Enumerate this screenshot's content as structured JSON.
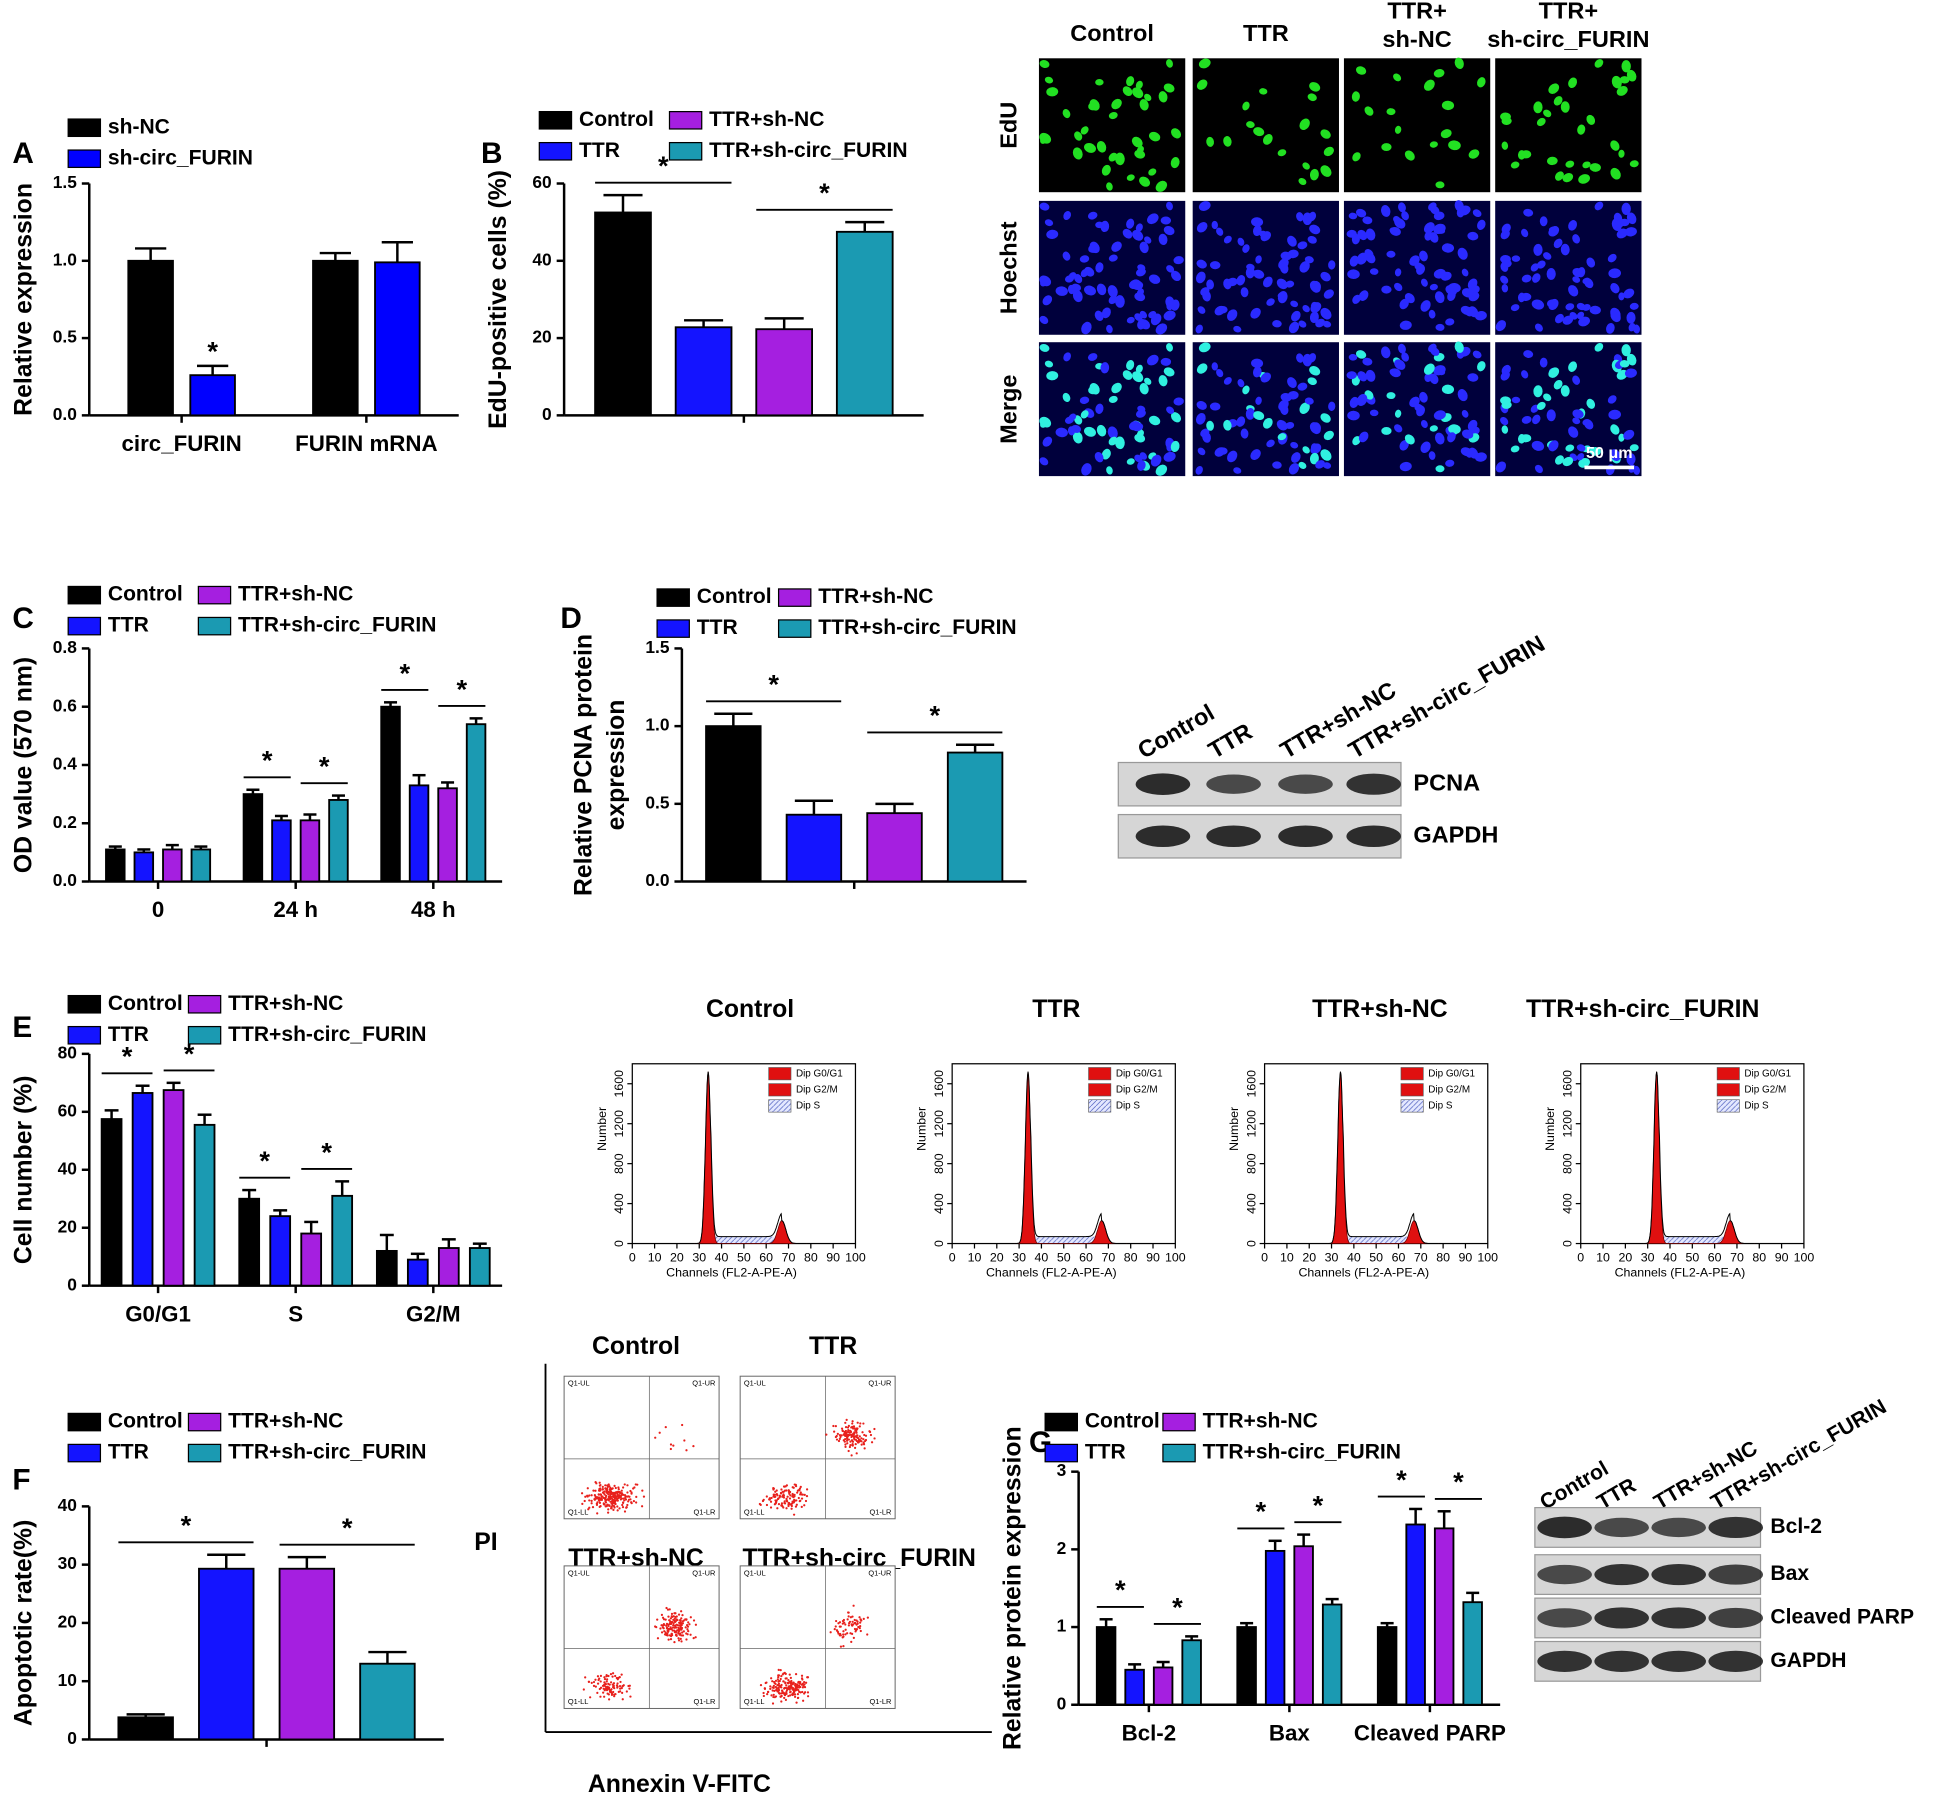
{
  "chart_data": [
    {
      "type": "bar",
      "panel_label": "A",
      "ylabel": "Relative expression",
      "categories": [
        "circ_FURIN",
        "FURIN mRNA"
      ],
      "series": [
        {
          "name": "sh-NC",
          "color": "#000000",
          "values": [
            1.0,
            1.0
          ],
          "errors": [
            0.08,
            0.05
          ]
        },
        {
          "name": "sh-circ_FURIN",
          "color": "#0000ff",
          "values": [
            0.26,
            0.99
          ],
          "errors": [
            0.06,
            0.13
          ]
        }
      ],
      "ylim": [
        0,
        1.5
      ],
      "yticks": [
        {
          "value": 0,
          "label": "0.0"
        },
        {
          "value": 0.5,
          "label": "0.5"
        },
        {
          "value": 1,
          "label": "1.0"
        },
        {
          "value": 1.5,
          "label": "1.5"
        }
      ],
      "annotations": [
        "*"
      ]
    },
    {
      "type": "bar",
      "panel_label": "B",
      "ylabel": "EdU-positive cells (%)",
      "categories": [
        null
      ],
      "series": [
        {
          "name": "Control",
          "color": "#000000",
          "values": [
            52.5
          ],
          "errors": [
            4.5
          ]
        },
        {
          "name": "TTR",
          "color": "#1414ff",
          "values": [
            22.8
          ],
          "errors": [
            1.8
          ]
        },
        {
          "name": "TTR+sh-NC",
          "color": "#a51fe0",
          "values": [
            22.3
          ],
          "errors": [
            2.8
          ]
        },
        {
          "name": "TTR+sh-circ_FURIN",
          "color": "#1b9ab2",
          "values": [
            47.5
          ],
          "errors": [
            2.5
          ]
        }
      ],
      "ylim": [
        0,
        60
      ],
      "yticks": [
        0,
        20,
        40,
        60
      ],
      "annotations": [
        "*",
        "*"
      ]
    },
    {
      "type": "bar",
      "panel_label": "C",
      "ylabel": "OD value (570 nm)",
      "categories": [
        "0",
        "24 h",
        "48 h"
      ],
      "series": [
        {
          "name": "Control",
          "color": "#000000",
          "values": [
            0.11,
            0.3,
            0.6
          ],
          "errors": [
            0.01,
            0.015,
            0.015
          ]
        },
        {
          "name": "TTR",
          "color": "#1414ff",
          "values": [
            0.1,
            0.21,
            0.33
          ],
          "errors": [
            0.01,
            0.015,
            0.035
          ]
        },
        {
          "name": "TTR+sh-NC",
          "color": "#a51fe0",
          "values": [
            0.11,
            0.21,
            0.32
          ],
          "errors": [
            0.015,
            0.02,
            0.02
          ]
        },
        {
          "name": "TTR+sh-circ_FURIN",
          "color": "#1b9ab2",
          "values": [
            0.11,
            0.28,
            0.54
          ],
          "errors": [
            0.01,
            0.015,
            0.02
          ]
        }
      ],
      "ylim": [
        0,
        0.8
      ],
      "yticks": [
        {
          "value": 0,
          "label": "0.0"
        },
        0.2,
        0.4,
        0.6,
        0.8
      ],
      "annotations": [
        "*",
        "*",
        "*",
        "*"
      ]
    },
    {
      "type": "bar",
      "panel_label": "D",
      "ylabel": [
        "Relative PCNA protein",
        "expression"
      ],
      "categories": [
        null
      ],
      "series": [
        {
          "name": "Control",
          "color": "#000000",
          "values": [
            1.0
          ],
          "errors": [
            0.08
          ]
        },
        {
          "name": "TTR",
          "color": "#1414ff",
          "values": [
            0.43
          ],
          "errors": [
            0.09
          ]
        },
        {
          "name": "TTR+sh-NC",
          "color": "#a51fe0",
          "values": [
            0.44
          ],
          "errors": [
            0.06
          ]
        },
        {
          "name": "TTR+sh-circ_FURIN",
          "color": "#1b9ab2",
          "values": [
            0.83
          ],
          "errors": [
            0.05
          ]
        }
      ],
      "ylim": [
        0,
        1.5
      ],
      "yticks": [
        {
          "value": 0,
          "label": "0.0"
        },
        0.5,
        {
          "value": 1,
          "label": "1.0"
        },
        1.5
      ],
      "annotations": [
        "*",
        "*"
      ]
    },
    {
      "type": "bar",
      "panel_label": "E",
      "ylabel": "Cell number (%)",
      "categories": [
        "G0/G1",
        "S",
        "G2/M"
      ],
      "series": [
        {
          "name": "Control",
          "color": "#000000",
          "values": [
            57.5,
            30,
            12
          ],
          "errors": [
            3,
            3,
            5.5
          ]
        },
        {
          "name": "TTR",
          "color": "#1414ff",
          "values": [
            66.5,
            24,
            9
          ],
          "errors": [
            2.5,
            2,
            2
          ]
        },
        {
          "name": "TTR+sh-NC",
          "color": "#a51fe0",
          "values": [
            67.5,
            18,
            13
          ],
          "errors": [
            2.5,
            4,
            3
          ]
        },
        {
          "name": "TTR+sh-circ_FURIN",
          "color": "#1b9ab2",
          "values": [
            55.5,
            31,
            13
          ],
          "errors": [
            3.5,
            5,
            1.5
          ]
        }
      ],
      "ylim": [
        0,
        80
      ],
      "yticks": [
        0,
        20,
        40,
        60,
        80
      ],
      "annotations": [
        "*",
        "*",
        "*",
        "*"
      ]
    },
    {
      "type": "bar",
      "panel_label": "F",
      "ylabel": "Apoptotic rate(%)",
      "categories": [
        null
      ],
      "series": [
        {
          "name": "Control",
          "color": "#000000",
          "values": [
            3.8
          ],
          "errors": [
            0.5
          ]
        },
        {
          "name": "TTR",
          "color": "#1414ff",
          "values": [
            29.3
          ],
          "errors": [
            2.4
          ]
        },
        {
          "name": "TTR+sh-NC",
          "color": "#a51fe0",
          "values": [
            29.3
          ],
          "errors": [
            2
          ]
        },
        {
          "name": "TTR+sh-circ_FURIN",
          "color": "#1b9ab2",
          "values": [
            13
          ],
          "errors": [
            2
          ]
        }
      ],
      "ylim": [
        0,
        40
      ],
      "yticks": [
        0,
        10,
        20,
        30,
        40
      ],
      "annotations": [
        "*",
        "*"
      ]
    },
    {
      "type": "bar",
      "panel_label": "G",
      "ylabel": "Relative protein expression",
      "categories": [
        "Bcl-2",
        "Bax",
        "Cleaved PARP"
      ],
      "series": [
        {
          "name": "Control",
          "color": "#000000",
          "values": [
            1.0,
            1.0,
            1.0
          ],
          "errors": [
            0.1,
            0.05,
            0.05
          ]
        },
        {
          "name": "TTR",
          "color": "#1414ff",
          "values": [
            0.45,
            1.98,
            2.32
          ],
          "errors": [
            0.07,
            0.13,
            0.2
          ]
        },
        {
          "name": "TTR+sh-NC",
          "color": "#a51fe0",
          "values": [
            0.48,
            2.04,
            2.27
          ],
          "errors": [
            0.07,
            0.15,
            0.22
          ]
        },
        {
          "name": "TTR+sh-circ_FURIN",
          "color": "#1b9ab2",
          "values": [
            0.83,
            1.29,
            1.32
          ],
          "errors": [
            0.05,
            0.07,
            0.12
          ]
        }
      ],
      "ylim": [
        0,
        3
      ],
      "yticks": [
        0,
        1,
        2,
        3
      ],
      "annotations": [
        "*",
        "*",
        "*",
        "*",
        "*",
        "*"
      ]
    }
  ],
  "edu_images": {
    "columns": [
      [
        "Control"
      ],
      [
        "TTR"
      ],
      [
        "TTR+",
        "sh-NC"
      ],
      [
        "TTR+",
        "sh-circ_FURIN"
      ]
    ],
    "rows": [
      "EdU",
      "Hoechst",
      "Merge"
    ],
    "scale_bar": "50 μm"
  },
  "pcna_blot": {
    "lanes": [
      "Control",
      "TTR",
      "TTR+sh-NC",
      "TTR+sh-circ_FURIN"
    ],
    "bands": [
      "PCNA",
      "GAPDH"
    ]
  },
  "cell_cycle": {
    "panels": [
      "Control",
      "TTR",
      "TTR+sh-NC",
      "TTR+sh-circ_FURIN"
    ],
    "legend": [
      "Dip G0/G1",
      "Dip G2/M",
      "Dip S"
    ],
    "xlabel": "Channels (FL2-A-PE-A)",
    "ylabel": "Number",
    "xlim": [
      0,
      100
    ],
    "ylim": [
      0,
      1800
    ],
    "xticks": [
      0,
      10,
      20,
      30,
      40,
      50,
      60,
      70,
      80,
      90,
      100
    ],
    "yticks": [
      0,
      400,
      800,
      1200,
      1600
    ]
  },
  "apoptosis_plots": {
    "panels": [
      "Control",
      "TTR",
      "TTR+sh-NC",
      "TTR+sh-circ_FURIN"
    ],
    "quadrants": [
      "Q1-UL",
      "Q1-UR",
      "Q1-LL",
      "Q1-LR"
    ],
    "xlabel": "Annexin V-FITC",
    "ylabel": "PI"
  },
  "apoptosis_blot": {
    "lanes": [
      "Control",
      "TTR",
      "TTR+sh-NC",
      "TTR+sh-circ_FURIN"
    ],
    "bands": [
      "Bcl-2",
      "Bax",
      "Cleaved PARP",
      "GAPDH"
    ]
  }
}
